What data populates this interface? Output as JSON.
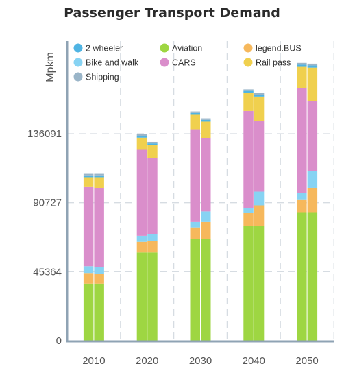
{
  "chart_data": {
    "type": "bar",
    "stacked": true,
    "title": "Passenger Transport Demand",
    "ylabel": "Mpkm",
    "xlabel": "",
    "categories": [
      "2010",
      "2020",
      "2030",
      "2040",
      "2050"
    ],
    "bars_per_category": 2,
    "ylim": [
      0,
      180000
    ],
    "yticks": [
      0,
      45364,
      90727,
      136091
    ],
    "ytick_labels": [
      "0",
      "45364",
      "90727",
      "136091"
    ],
    "grid": true,
    "legend_position": "top",
    "series": [
      {
        "name": "Aviation",
        "color": "#9ed642",
        "values_a": [
          37500,
          58000,
          67000,
          75500,
          84500
        ],
        "values_b": [
          37500,
          58000,
          67000,
          75500,
          84500
        ]
      },
      {
        "name": "legend.BUS",
        "color": "#f6b85c",
        "values_a": [
          7000,
          7000,
          7500,
          8500,
          8000
        ],
        "values_b": [
          6500,
          7500,
          11000,
          13500,
          16000
        ]
      },
      {
        "name": "Bike and walk",
        "color": "#87d3f3",
        "values_a": [
          4500,
          4000,
          3500,
          3000,
          4500
        ],
        "values_b": [
          4500,
          4500,
          7000,
          9000,
          11000
        ]
      },
      {
        "name": "CARS",
        "color": "#da8ecb",
        "values_a": [
          52000,
          56500,
          61000,
          64000,
          69000
        ],
        "values_b": [
          52000,
          50000,
          48000,
          46500,
          46000
        ]
      },
      {
        "name": "Rail pass",
        "color": "#f0d04e",
        "values_a": [
          6500,
          8000,
          9500,
          12000,
          14000
        ],
        "values_b": [
          7000,
          8500,
          11000,
          16000,
          22000
        ]
      },
      {
        "name": "2 wheeler",
        "color": "#4fb4e3",
        "values_a": [
          1200,
          1200,
          1200,
          1200,
          1400
        ],
        "values_b": [
          1200,
          1200,
          1200,
          1200,
          1400
        ]
      },
      {
        "name": "Shipping",
        "color": "#9ab5c8",
        "values_a": [
          1000,
          1000,
          1000,
          1000,
          1200
        ],
        "values_b": [
          1000,
          1000,
          1000,
          1000,
          1200
        ]
      }
    ],
    "legend": [
      {
        "name": "2 wheeler",
        "color": "#4fb4e3"
      },
      {
        "name": "Aviation",
        "color": "#9ed642"
      },
      {
        "name": "legend.BUS",
        "color": "#f6b85c"
      },
      {
        "name": "Bike and walk",
        "color": "#87d3f3"
      },
      {
        "name": "CARS",
        "color": "#da8ecb"
      },
      {
        "name": "Rail pass",
        "color": "#f0d04e"
      },
      {
        "name": "Shipping",
        "color": "#9ab5c8"
      }
    ]
  }
}
